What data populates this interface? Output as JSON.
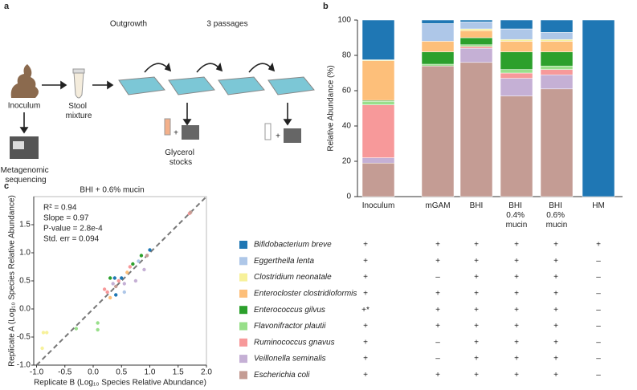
{
  "panel_labels": [
    "a",
    "b",
    "c"
  ],
  "diagram": {
    "outgrowth": "Outgrowth",
    "passages": "3 passages",
    "inoculum": "Inoculum",
    "stool": "Stool mixture",
    "sequencing": "Metagenomic sequencing",
    "glycerol": "Glycerol stocks",
    "plus": [
      "+",
      "+"
    ]
  },
  "chart_data": [
    {
      "type": "stacked_bar",
      "ylabel": "Relative Abundance (%)",
      "categories": [
        "Inoculum",
        "mGAM",
        "BHI",
        "BHI 0.4% mucin",
        "BHI 0.6% mucin",
        "HM"
      ],
      "ylim": [
        0,
        100
      ],
      "yticks": [
        0,
        20,
        40,
        60,
        80,
        100
      ],
      "series": [
        {
          "name": "Escherichia coli",
          "color": "#c49c94",
          "values": [
            19,
            74,
            76,
            57,
            61,
            0
          ]
        },
        {
          "name": "Veillonella seminalis",
          "color": "#c5b0d5",
          "values": [
            3,
            0,
            8,
            10,
            8,
            0
          ]
        },
        {
          "name": "Ruminococcus gnavus",
          "color": "#f7999a",
          "values": [
            30,
            0,
            1,
            3,
            3,
            0
          ]
        },
        {
          "name": "Flavonifractor plautii",
          "color": "#98df8a",
          "values": [
            2,
            1,
            1,
            2,
            2,
            0
          ]
        },
        {
          "name": "Enterococcus gilvus",
          "color": "#2ca02c",
          "values": [
            0.5,
            7,
            4,
            10,
            8,
            0
          ]
        },
        {
          "name": "Enterocloster clostridioformis",
          "color": "#fdbf7a",
          "values": [
            22.5,
            6,
            4,
            6,
            6,
            0
          ]
        },
        {
          "name": "Clostridium neonatale",
          "color": "#f7f19a",
          "values": [
            0.5,
            0,
            1,
            1,
            1,
            0
          ]
        },
        {
          "name": "Eggerthella lenta",
          "color": "#aec7e8",
          "values": [
            0,
            10,
            4,
            6,
            4,
            0
          ]
        },
        {
          "name": "Bifidobacterium breve",
          "color": "#1f77b4",
          "values": [
            22.5,
            2,
            1,
            5,
            7,
            100
          ]
        }
      ]
    },
    {
      "type": "scatter",
      "title": "BHI + 0.6% mucin",
      "xlabel": "Replicate B (Log₁₀ Species Relative Abundance)",
      "ylabel": "Replicate A (Log₁₀ Species Relative Abundance)",
      "annotations": [
        "R² = 0.94",
        "Slope = 0.97",
        "P-value = 2.8e-4",
        "Std. err = 0.094"
      ],
      "xlim": [
        -1.05,
        2.0
      ],
      "ylim": [
        -1.0,
        2.0
      ],
      "xticks": [
        {
          "value": -1,
          "label": "-1.0"
        },
        {
          "value": -0.5,
          "label": "-0.5"
        },
        {
          "value": 0,
          "label": "0.0"
        },
        {
          "value": 0.5,
          "label": "0.5"
        },
        {
          "value": 1,
          "label": "1.0"
        },
        {
          "value": 1.5,
          "label": "1.5"
        },
        {
          "value": 2,
          "label": "2.0"
        }
      ],
      "yticks": [
        {
          "value": -1,
          "label": "-1.0"
        },
        {
          "value": -0.5,
          "label": "-0.5"
        },
        {
          "value": 0,
          "label": "0.0"
        },
        {
          "value": 0.5,
          "label": "0.5"
        },
        {
          "value": 1,
          "label": "1.0"
        },
        {
          "value": 1.5,
          "label": "1.5"
        }
      ],
      "series": [
        {
          "color": "#1f77b4",
          "x": [
            0.38,
            0.4,
            0.5,
            1.0
          ],
          "values": [
            0.55,
            0.25,
            0.55,
            1.05
          ]
        },
        {
          "color": "#aec7e8",
          "x": [
            0.8,
            0.55
          ],
          "values": [
            0.85,
            0.3
          ]
        },
        {
          "color": "#f7f19a",
          "x": [
            -0.88,
            -0.82,
            -0.9
          ],
          "values": [
            -0.42,
            -0.42,
            -0.7
          ]
        },
        {
          "color": "#fdbf7a",
          "x": [
            0.6,
            0.3
          ],
          "values": [
            0.65,
            0.2
          ]
        },
        {
          "color": "#2ca02c",
          "x": [
            0.3,
            0.7,
            0.85
          ],
          "values": [
            0.55,
            0.8,
            0.95
          ]
        },
        {
          "color": "#98df8a",
          "x": [
            -0.3,
            0.08,
            0.08
          ],
          "values": [
            -0.35,
            -0.25,
            -0.37
          ]
        },
        {
          "color": "#f7999a",
          "x": [
            0.2,
            0.25,
            0.45,
            0.65,
            1.7
          ],
          "values": [
            0.35,
            0.3,
            0.5,
            0.75,
            1.7
          ]
        },
        {
          "color": "#c5b0d5",
          "x": [
            0.35,
            0.55,
            0.75,
            0.9
          ],
          "values": [
            0.45,
            0.45,
            0.5,
            0.7
          ]
        },
        {
          "color": "#c49c94",
          "x": [
            0.95,
            1.72,
            0.4
          ],
          "values": [
            0.95,
            1.72,
            0.4
          ]
        }
      ]
    }
  ],
  "presence_table": {
    "rows": [
      [
        "+",
        "+",
        "+",
        "+",
        "+",
        "+"
      ],
      [
        "+",
        "+",
        "+",
        "+",
        "+",
        "–"
      ],
      [
        "+",
        "–",
        "+",
        "+",
        "+",
        "–"
      ],
      [
        "+",
        "+",
        "+",
        "+",
        "+",
        "–"
      ],
      [
        "+*",
        "+",
        "+",
        "+",
        "+",
        "–"
      ],
      [
        "+",
        "+",
        "+",
        "+",
        "+",
        "–"
      ],
      [
        "+",
        "–",
        "+",
        "+",
        "+",
        "–"
      ],
      [
        "+",
        "–",
        "+",
        "+",
        "+",
        "–"
      ],
      [
        "+",
        "+",
        "+",
        "+",
        "+",
        "–"
      ]
    ]
  }
}
